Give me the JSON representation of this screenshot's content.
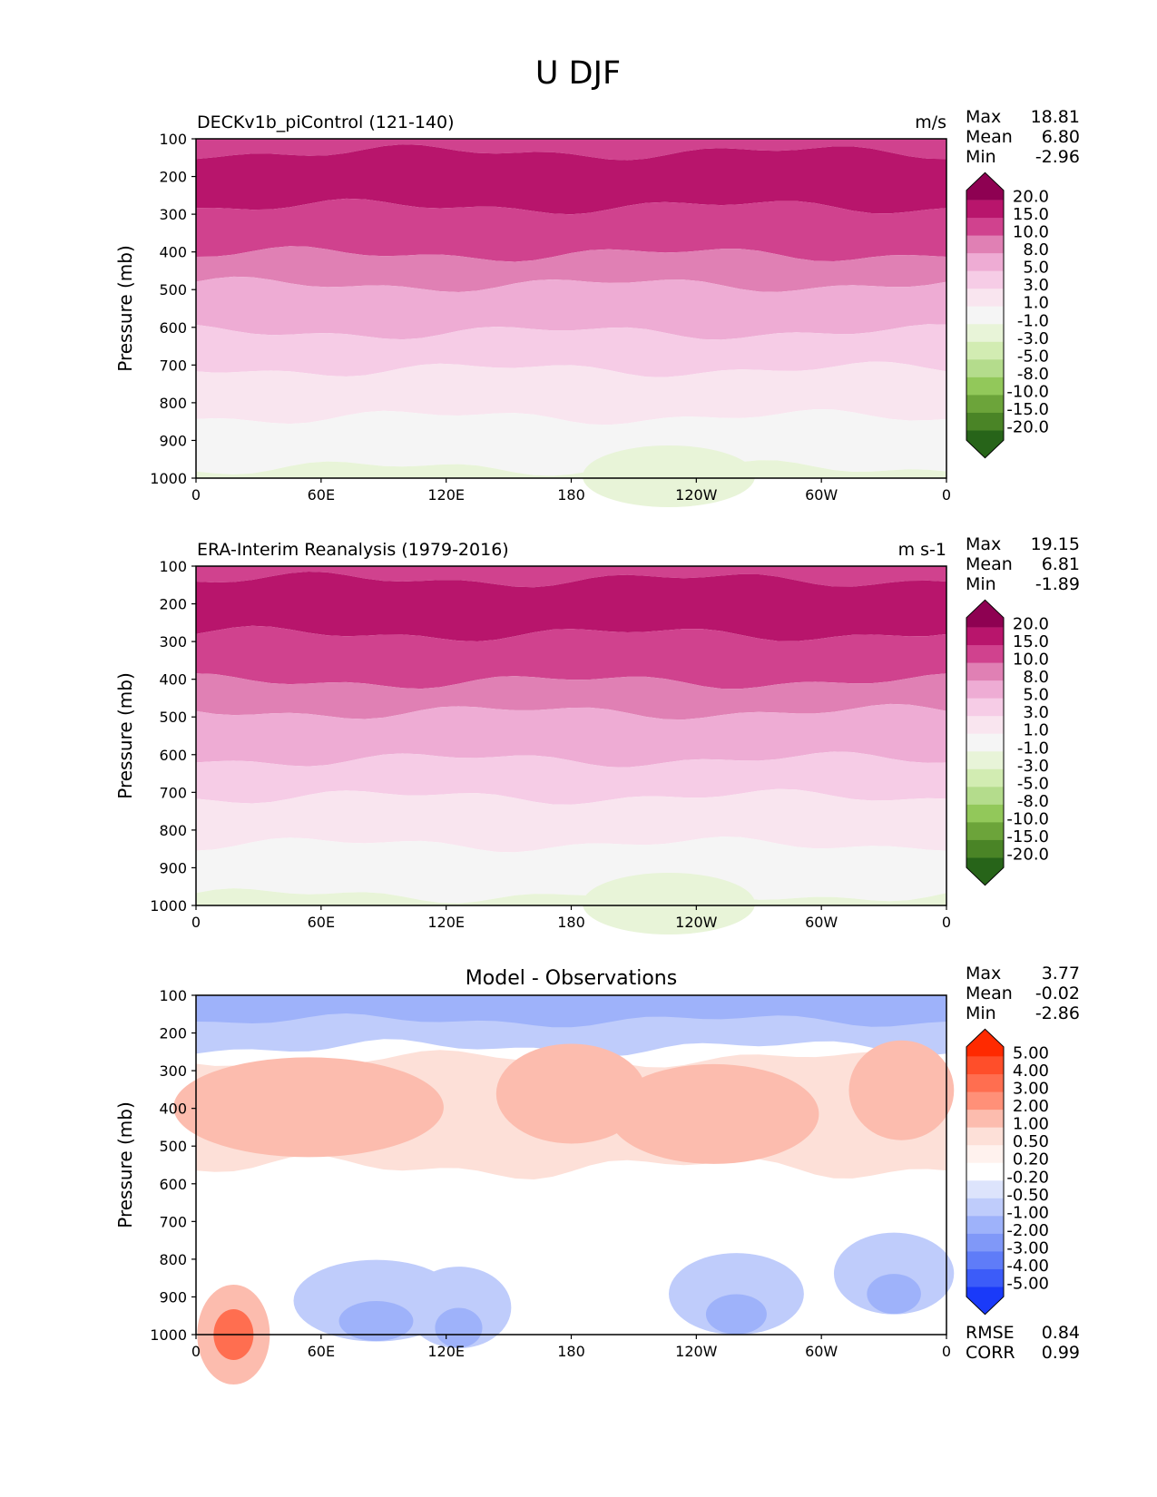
{
  "figure": {
    "title": "U DJF"
  },
  "x_ticks": [
    "0",
    "60E",
    "120E",
    "180",
    "120W",
    "60W",
    "0"
  ],
  "y_ticks": [
    "100",
    "200",
    "300",
    "400",
    "500",
    "600",
    "700",
    "800",
    "900",
    "1000"
  ],
  "ylabel": "Pressure (mb)",
  "panels": [
    {
      "title_left": "DECKv1b_piControl (121-140)",
      "title_center": "",
      "units": "m/s",
      "stats": [
        {
          "label": "Max",
          "value": "18.81"
        },
        {
          "label": "Mean",
          "value": "6.80"
        },
        {
          "label": "Min",
          "value": "-2.96"
        }
      ],
      "extra_stats": [],
      "colorbar": {
        "labels": [
          "20.0",
          "15.0",
          "10.0",
          "8.0",
          "5.0",
          "3.0",
          "1.0",
          "-1.0",
          "-3.0",
          "-5.0",
          "-8.0",
          "-10.0",
          "-15.0",
          "-20.0"
        ],
        "colors": [
          "#8e0152",
          "#b8156c",
          "#d0428e",
          "#e080b4",
          "#eeacd4",
          "#f6cce6",
          "#f9e5ef",
          "#f5f5f5",
          "#e8f4d8",
          "#d2ecb2",
          "#b4dc8c",
          "#92c85a",
          "#6ca43a",
          "#4a8426",
          "#276419"
        ]
      }
    },
    {
      "title_left": "ERA-Interim Reanalysis (1979-2016)",
      "title_center": "",
      "units": "m s-1",
      "stats": [
        {
          "label": "Max",
          "value": "19.15"
        },
        {
          "label": "Mean",
          "value": "6.81"
        },
        {
          "label": "Min",
          "value": "-1.89"
        }
      ],
      "extra_stats": [],
      "colorbar": {
        "labels": [
          "20.0",
          "15.0",
          "10.0",
          "8.0",
          "5.0",
          "3.0",
          "1.0",
          "-1.0",
          "-3.0",
          "-5.0",
          "-8.0",
          "-10.0",
          "-15.0",
          "-20.0"
        ],
        "colors": [
          "#8e0152",
          "#b8156c",
          "#d0428e",
          "#e080b4",
          "#eeacd4",
          "#f6cce6",
          "#f9e5ef",
          "#f5f5f5",
          "#e8f4d8",
          "#d2ecb2",
          "#b4dc8c",
          "#92c85a",
          "#6ca43a",
          "#4a8426",
          "#276419"
        ]
      }
    },
    {
      "title_left": "",
      "title_center": "Model - Observations",
      "units": "",
      "stats": [
        {
          "label": "Max",
          "value": "3.77"
        },
        {
          "label": "Mean",
          "value": "-0.02"
        },
        {
          "label": "Min",
          "value": "-2.86"
        }
      ],
      "extra_stats": [
        {
          "label": "RMSE",
          "value": "0.84"
        },
        {
          "label": "CORR",
          "value": "0.99"
        }
      ],
      "colorbar": {
        "labels": [
          "5.00",
          "4.00",
          "3.00",
          "2.00",
          "1.00",
          "0.50",
          "0.20",
          "-0.20",
          "-0.50",
          "-1.00",
          "-2.00",
          "-3.00",
          "-4.00",
          "-5.00"
        ],
        "colors": [
          "#ff2a00",
          "#ff4e2a",
          "#ff6e50",
          "#ff9078",
          "#fcbcae",
          "#fde0d8",
          "#fff2ee",
          "#ffffff",
          "#dde4fc",
          "#bfccfb",
          "#9eb2fa",
          "#8098f8",
          "#5f7cf8",
          "#3c5cf9",
          "#1a3af9"
        ]
      }
    }
  ],
  "chart_data": [
    {
      "type": "heatmap",
      "title": "DECKv1b_piControl (121-140)",
      "xlabel": "",
      "ylabel": "Pressure (mb)",
      "x_range": [
        "0",
        "0"
      ],
      "ylim": [
        1000,
        100
      ],
      "levels": [
        -20,
        -15,
        -10,
        -8,
        -5,
        -3,
        -1,
        1,
        3,
        5,
        8,
        10,
        15,
        20
      ],
      "approx_profile": {
        "pressure": [
          100,
          200,
          300,
          400,
          500,
          600,
          700,
          800,
          900,
          1000
        ],
        "u": [
          12,
          17,
          13,
          10,
          7,
          5,
          3,
          1.5,
          0.5,
          0
        ]
      },
      "max": 18.81,
      "mean": 6.8,
      "min": -2.96,
      "units": "m/s"
    },
    {
      "type": "heatmap",
      "title": "ERA-Interim Reanalysis (1979-2016)",
      "xlabel": "",
      "ylabel": "Pressure (mb)",
      "x_range": [
        "0",
        "0"
      ],
      "ylim": [
        1000,
        100
      ],
      "levels": [
        -20,
        -15,
        -10,
        -8,
        -5,
        -3,
        -1,
        1,
        3,
        5,
        8,
        10,
        15,
        20
      ],
      "approx_profile": {
        "pressure": [
          100,
          200,
          300,
          400,
          500,
          600,
          700,
          800,
          900,
          1000
        ],
        "u": [
          12,
          17,
          13,
          10,
          7,
          5,
          3,
          1.5,
          0.5,
          0
        ]
      },
      "max": 19.15,
      "mean": 6.81,
      "min": -1.89,
      "units": "m s-1"
    },
    {
      "type": "heatmap",
      "title": "Model - Observations",
      "xlabel": "",
      "ylabel": "Pressure (mb)",
      "x_range": [
        "0",
        "0"
      ],
      "ylim": [
        1000,
        100
      ],
      "levels": [
        -5,
        -4,
        -3,
        -2,
        -1,
        -0.5,
        -0.2,
        0.2,
        0.5,
        1,
        2,
        3,
        4,
        5
      ],
      "max": 3.77,
      "mean": -0.02,
      "min": -2.86,
      "rmse": 0.84,
      "corr": 0.99
    }
  ]
}
